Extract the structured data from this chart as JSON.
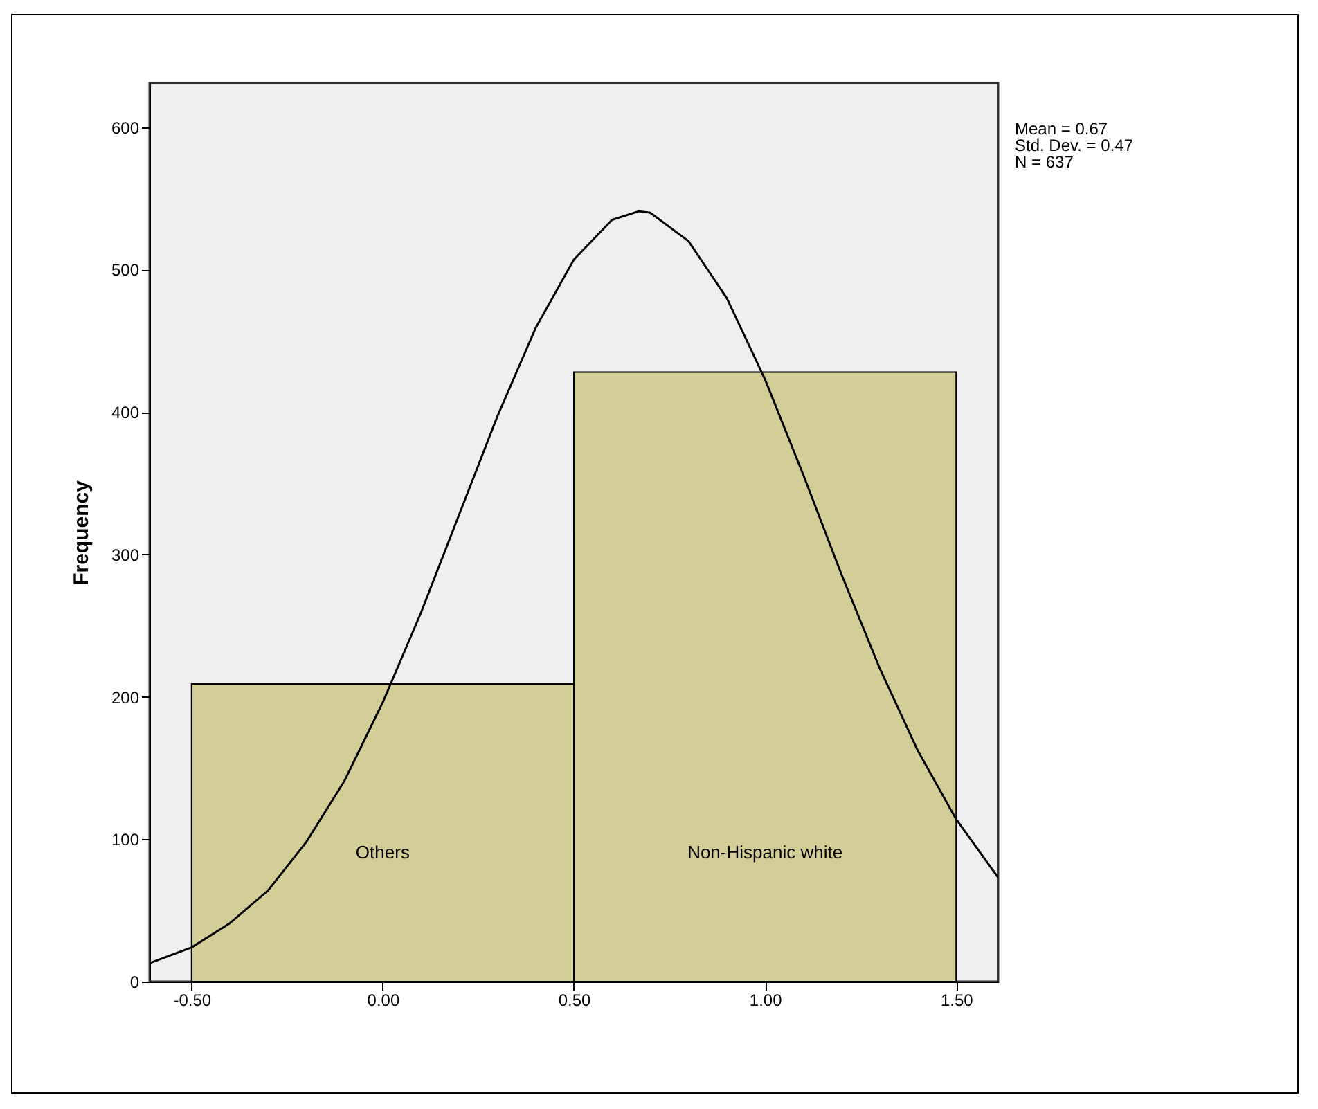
{
  "chart_data": {
    "type": "histogram",
    "ylabel": "Frequency",
    "bins": [
      -0.5,
      0.5,
      1.5
    ],
    "values": [
      209,
      428
    ],
    "color": "#d3ce97",
    "series": [
      {
        "type": "line",
        "color": "#000000",
        "x": [
          -0.61,
          -0.5,
          -0.4,
          -0.3,
          -0.2,
          -0.1,
          0,
          0.1,
          0.2,
          0.3,
          0.4,
          0.5,
          0.6,
          0.67,
          0.7,
          0.8,
          0.9,
          1.0,
          1.1,
          1.2,
          1.3,
          1.4,
          1.5,
          1.61
        ],
        "values": [
          13,
          24,
          41,
          64,
          98,
          141,
          196,
          259,
          328,
          397,
          459,
          507,
          535,
          541,
          540,
          520,
          480,
          423,
          356,
          286,
          220,
          162,
          114,
          73
        ]
      }
    ],
    "xlim": [
      -0.61,
      1.61
    ],
    "ylim": [
      0,
      631
    ],
    "xticks": [
      {
        "value": -0.5,
        "label": "-0.50"
      },
      {
        "value": 0,
        "label": "0.00"
      },
      {
        "value": 0.5,
        "label": "0.50"
      },
      {
        "value": 1,
        "label": "1.00"
      },
      {
        "value": 1.5,
        "label": "1.50"
      }
    ],
    "yticks": [
      0,
      100,
      200,
      300,
      400,
      500,
      600
    ],
    "categories": [
      "Others",
      "Non-Hispanic white"
    ],
    "annotations": [
      "Mean = 0.67",
      "Std. Dev. = 0.47",
      "N = 637"
    ]
  }
}
